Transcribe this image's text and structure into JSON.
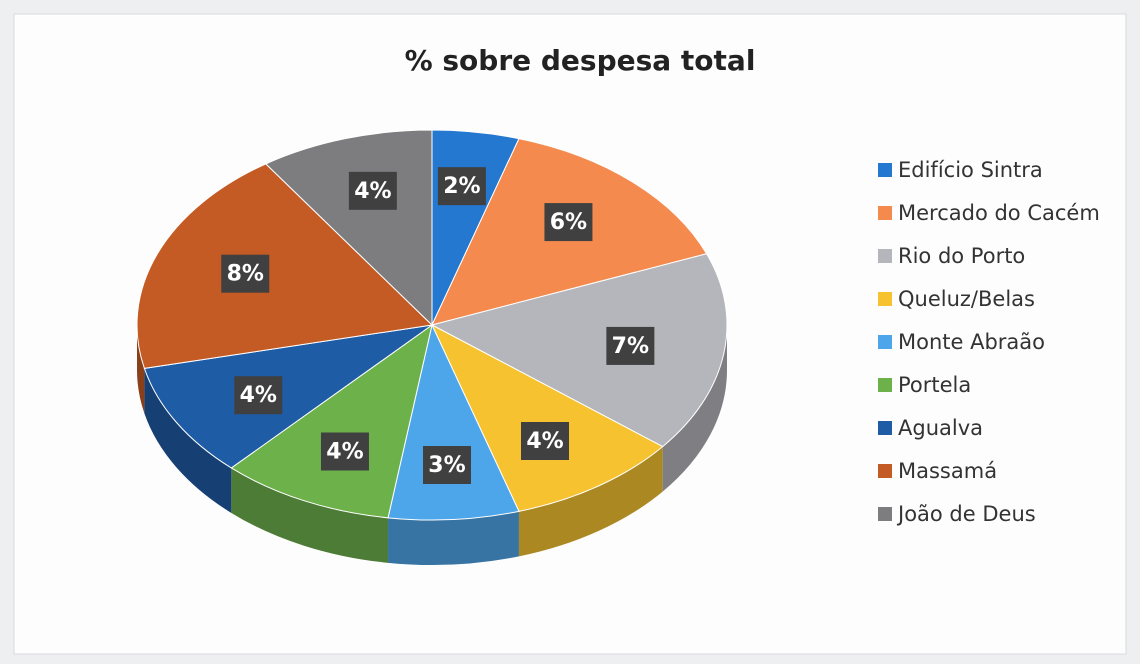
{
  "chart_data": {
    "type": "pie",
    "title": "% sobre despesa total",
    "categories": [
      "Edifício Sintra",
      "Mercado do Cacém",
      "Rio do Porto",
      "Queluz/Belas",
      "Monte Abraão",
      "Portela",
      "Agualva",
      "Massamá",
      "João de Deus"
    ],
    "values": [
      2,
      6,
      7,
      4,
      3,
      4,
      4,
      8,
      4
    ],
    "value_labels": [
      "2%",
      "6%",
      "7%",
      "4%",
      "3%",
      "4%",
      "4%",
      "8%",
      "4%"
    ],
    "colors": [
      "#2478cf",
      "#f58a4f",
      "#b5b6bb",
      "#f6c230",
      "#4ea6ea",
      "#6db14b",
      "#1f5ca6",
      "#c45a24",
      "#7d7d7f"
    ],
    "legend": "right"
  }
}
